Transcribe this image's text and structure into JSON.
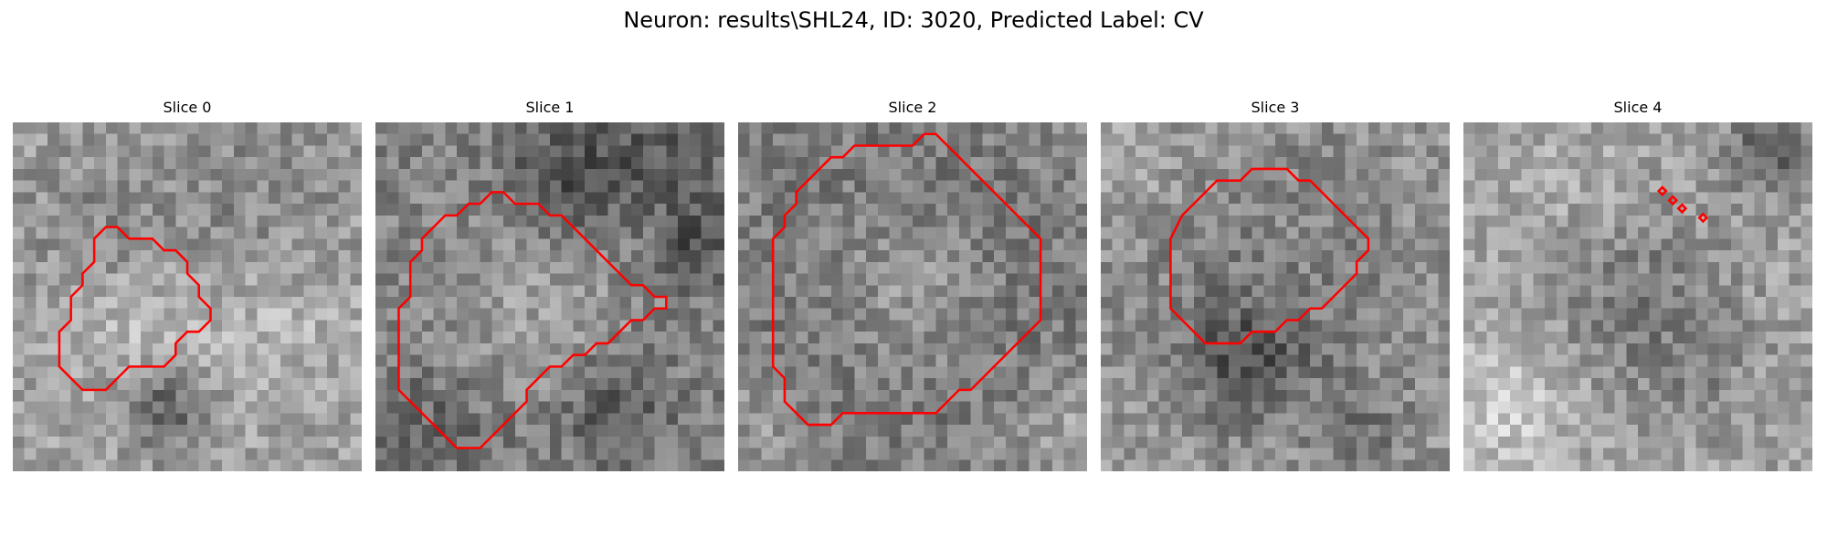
{
  "figure": {
    "title": "Neuron: results\\SHL24, ID: 3020, Predicted Label: CV"
  },
  "contour_color": "#ff0000",
  "panels": [
    {
      "label": "Slice 0",
      "contour": [
        [
          7,
          10
        ],
        [
          8,
          9
        ],
        [
          9,
          9
        ],
        [
          10,
          10
        ],
        [
          12,
          10
        ],
        [
          13,
          11
        ],
        [
          14,
          11
        ],
        [
          15,
          12
        ],
        [
          15,
          13
        ],
        [
          16,
          14
        ],
        [
          16,
          15
        ],
        [
          17,
          16
        ],
        [
          17,
          17
        ],
        [
          16,
          18
        ],
        [
          15,
          18
        ],
        [
          14,
          19
        ],
        [
          14,
          20
        ],
        [
          13,
          21
        ],
        [
          10,
          21
        ],
        [
          9,
          22
        ],
        [
          8,
          23
        ],
        [
          6,
          23
        ],
        [
          5,
          22
        ],
        [
          4,
          21
        ],
        [
          4,
          18
        ],
        [
          5,
          17
        ],
        [
          5,
          15
        ],
        [
          6,
          14
        ],
        [
          6,
          13
        ],
        [
          7,
          12
        ]
      ]
    },
    {
      "label": "Slice 1",
      "contour": [
        [
          4,
          10
        ],
        [
          5,
          9
        ],
        [
          6,
          8
        ],
        [
          7,
          8
        ],
        [
          8,
          7
        ],
        [
          9,
          7
        ],
        [
          10,
          6
        ],
        [
          11,
          6
        ],
        [
          12,
          7
        ],
        [
          14,
          7
        ],
        [
          15,
          8
        ],
        [
          16,
          8
        ],
        [
          17,
          9
        ],
        [
          18,
          10
        ],
        [
          19,
          11
        ],
        [
          20,
          12
        ],
        [
          21,
          13
        ],
        [
          22,
          14
        ],
        [
          23,
          14
        ],
        [
          24,
          15
        ],
        [
          25,
          15
        ],
        [
          25,
          16
        ],
        [
          24,
          16
        ],
        [
          23,
          17
        ],
        [
          22,
          17
        ],
        [
          21,
          18
        ],
        [
          20,
          19
        ],
        [
          19,
          19
        ],
        [
          18,
          20
        ],
        [
          17,
          20
        ],
        [
          16,
          21
        ],
        [
          15,
          21
        ],
        [
          14,
          22
        ],
        [
          13,
          23
        ],
        [
          13,
          24
        ],
        [
          12,
          25
        ],
        [
          11,
          26
        ],
        [
          10,
          27
        ],
        [
          9,
          28
        ],
        [
          7,
          28
        ],
        [
          6,
          27
        ],
        [
          5,
          26
        ],
        [
          4,
          25
        ],
        [
          3,
          24
        ],
        [
          2,
          23
        ],
        [
          2,
          16
        ],
        [
          3,
          15
        ],
        [
          3,
          12
        ],
        [
          4,
          11
        ]
      ]
    },
    {
      "label": "Slice 2",
      "contour": [
        [
          6,
          5
        ],
        [
          7,
          4
        ],
        [
          8,
          3
        ],
        [
          9,
          3
        ],
        [
          10,
          2
        ],
        [
          15,
          2
        ],
        [
          16,
          1
        ],
        [
          17,
          1
        ],
        [
          18,
          2
        ],
        [
          19,
          3
        ],
        [
          20,
          4
        ],
        [
          21,
          5
        ],
        [
          22,
          6
        ],
        [
          23,
          7
        ],
        [
          24,
          8
        ],
        [
          25,
          9
        ],
        [
          26,
          10
        ],
        [
          26,
          17
        ],
        [
          25,
          18
        ],
        [
          24,
          19
        ],
        [
          23,
          20
        ],
        [
          22,
          21
        ],
        [
          21,
          22
        ],
        [
          20,
          23
        ],
        [
          19,
          23
        ],
        [
          18,
          24
        ],
        [
          17,
          25
        ],
        [
          9,
          25
        ],
        [
          8,
          26
        ],
        [
          6,
          26
        ],
        [
          5,
          25
        ],
        [
          4,
          24
        ],
        [
          4,
          22
        ],
        [
          3,
          21
        ],
        [
          3,
          15
        ],
        [
          3,
          10
        ],
        [
          4,
          9
        ],
        [
          4,
          8
        ],
        [
          5,
          7
        ],
        [
          5,
          6
        ]
      ]
    },
    {
      "label": "Slice 3",
      "contour": [
        [
          7,
          8
        ],
        [
          8,
          7
        ],
        [
          9,
          6
        ],
        [
          10,
          5
        ],
        [
          12,
          5
        ],
        [
          13,
          4
        ],
        [
          16,
          4
        ],
        [
          17,
          5
        ],
        [
          18,
          5
        ],
        [
          19,
          6
        ],
        [
          20,
          7
        ],
        [
          21,
          8
        ],
        [
          22,
          9
        ],
        [
          23,
          10
        ],
        [
          23,
          11
        ],
        [
          22,
          12
        ],
        [
          22,
          13
        ],
        [
          21,
          14
        ],
        [
          20,
          15
        ],
        [
          19,
          16
        ],
        [
          18,
          16
        ],
        [
          17,
          17
        ],
        [
          16,
          17
        ],
        [
          15,
          18
        ],
        [
          13,
          18
        ],
        [
          12,
          19
        ],
        [
          10,
          19
        ],
        [
          9,
          19
        ],
        [
          8,
          18
        ],
        [
          7,
          17
        ],
        [
          6,
          16
        ],
        [
          6,
          15
        ],
        [
          6,
          10
        ]
      ]
    },
    {
      "label": "Slice 4",
      "diamonds": [
        [
          17.1,
          5.9
        ],
        [
          18.0,
          6.7
        ],
        [
          18.8,
          7.4
        ],
        [
          20.6,
          8.2
        ]
      ]
    }
  ]
}
